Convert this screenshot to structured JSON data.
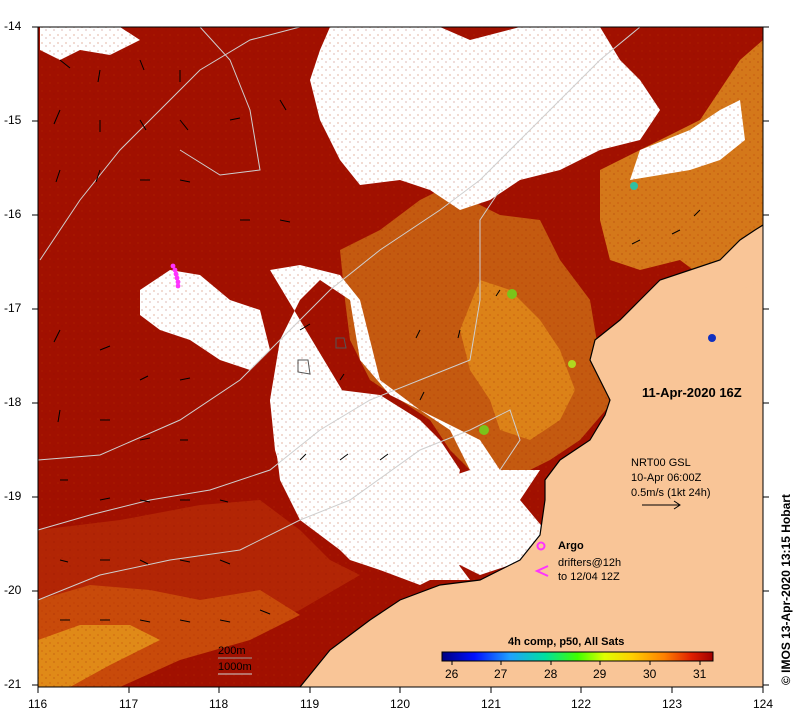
{
  "map": {
    "date_label": "11-Apr-2020 16Z",
    "lat_ticks": [
      "-14",
      "-15",
      "-16",
      "-17",
      "-18",
      "-19",
      "-20",
      "-21"
    ],
    "lon_ticks": [
      "116",
      "117",
      "118",
      "119",
      "120",
      "121",
      "122",
      "123",
      "124"
    ],
    "currents_legend": {
      "line1": "NRT00 GSL",
      "line2": "10-Apr 06:00Z",
      "line3": "0.5m/s (1kt 24h)"
    },
    "argo": {
      "label": "Argo"
    },
    "drifters": {
      "line1": "drifters@12h",
      "line2": "to 12/04 12Z"
    },
    "depth_contours": {
      "c1": "200m",
      "c2": "1000m"
    },
    "colorbar": {
      "title": "4h comp, p50, All Sats",
      "ticks": [
        "26",
        "27",
        "28",
        "29",
        "30",
        "31"
      ]
    },
    "credit": "© IMOS 13-Apr-2020 13:15 Hobart",
    "colors": {
      "land": "#f9c597",
      "warm_sea": "#a11000",
      "mid_sea": "#c94a08",
      "orange_sea": "#e07810",
      "cloud": "#ffffff",
      "argo": "#ff33ff",
      "contour": "#cfcfcf"
    }
  }
}
